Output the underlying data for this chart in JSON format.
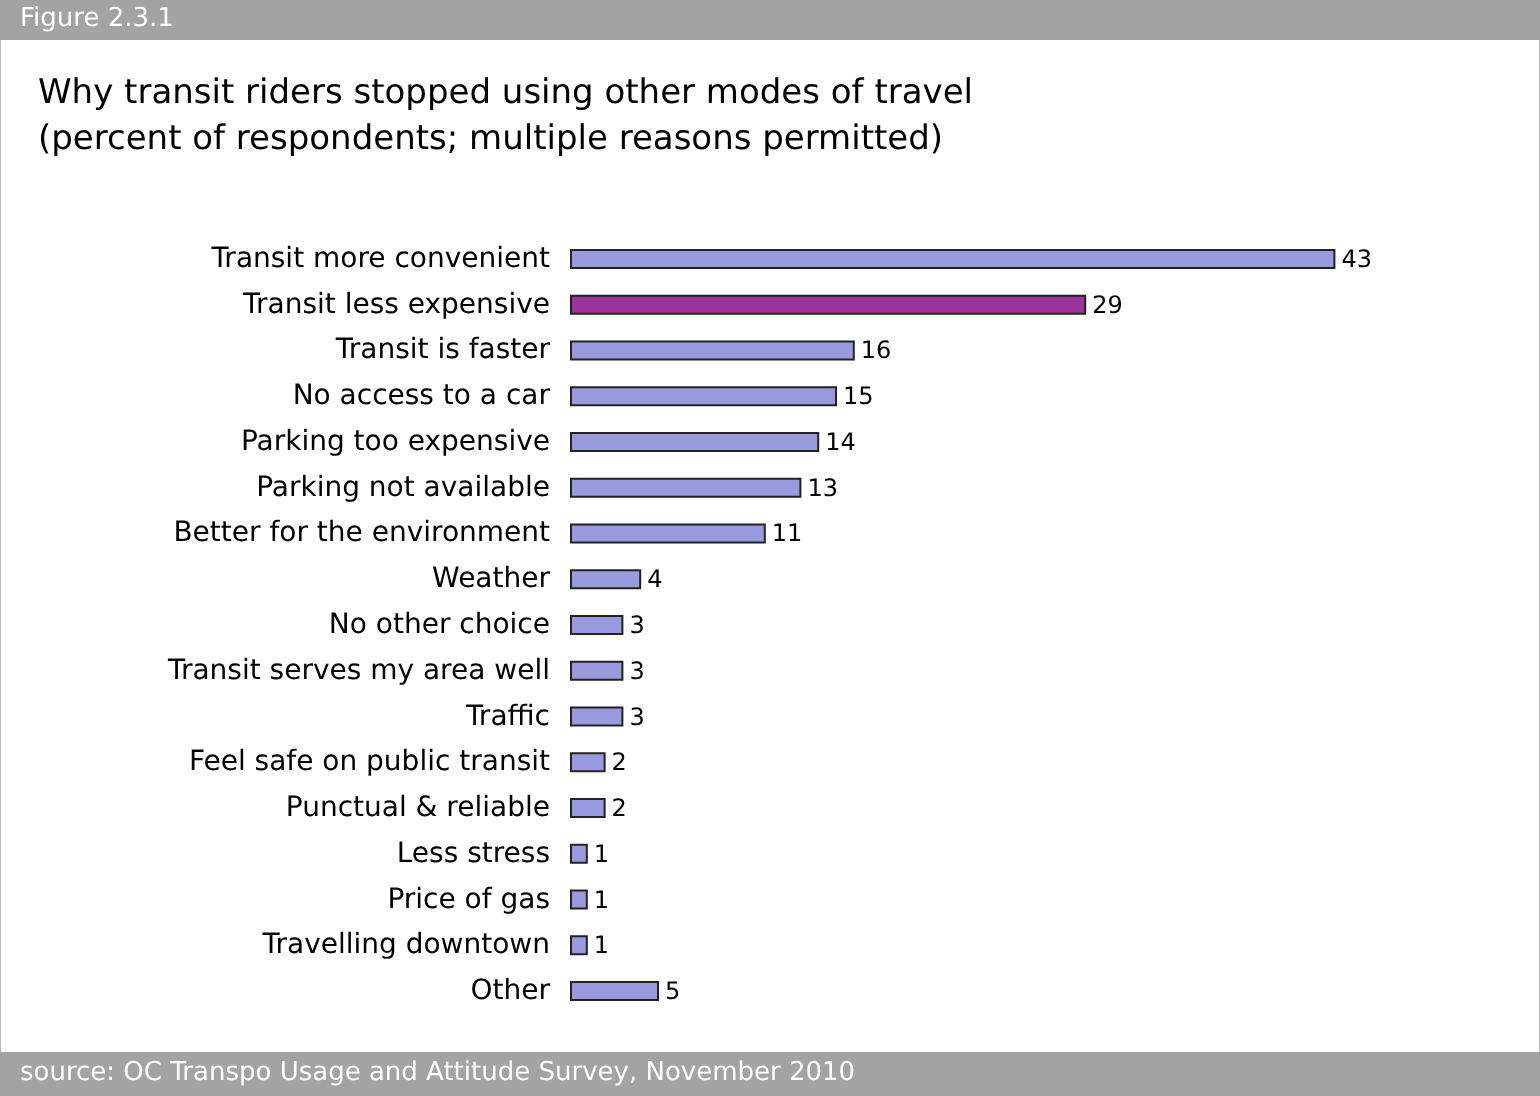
{
  "chart_data": {
    "type": "bar",
    "orientation": "horizontal",
    "title": "Why transit riders stopped using other modes of travel\n(percent of respondents; multiple reasons permitted)",
    "categories": [
      "Transit more convenient",
      "Transit less expensive",
      "Transit is faster",
      "No access to a car",
      "Parking too expensive",
      "Parking not available",
      "Better for the environment",
      "Weather",
      "No other choice",
      "Transit serves my area well",
      "Traffic",
      "Feel safe on public transit",
      "Punctual & reliable",
      "Less stress",
      "Price of gas",
      "Travelling downtown",
      "Other"
    ],
    "values": [
      43,
      29,
      16,
      15,
      14,
      13,
      11,
      4,
      3,
      3,
      3,
      2,
      2,
      1,
      1,
      1,
      5
    ],
    "colors": [
      "#9999dd",
      "#993399",
      "#9999dd",
      "#9999dd",
      "#9999dd",
      "#9999dd",
      "#9999dd",
      "#9999dd",
      "#9999dd",
      "#9999dd",
      "#9999dd",
      "#9999dd",
      "#9999dd",
      "#9999dd",
      "#9999dd",
      "#9999dd",
      "#9999dd"
    ],
    "data_labels": true,
    "annotations": [
      "Figure 2.3.1",
      "source: OC Transpo Usage and Attitude Survey, November 2010"
    ]
  }
}
